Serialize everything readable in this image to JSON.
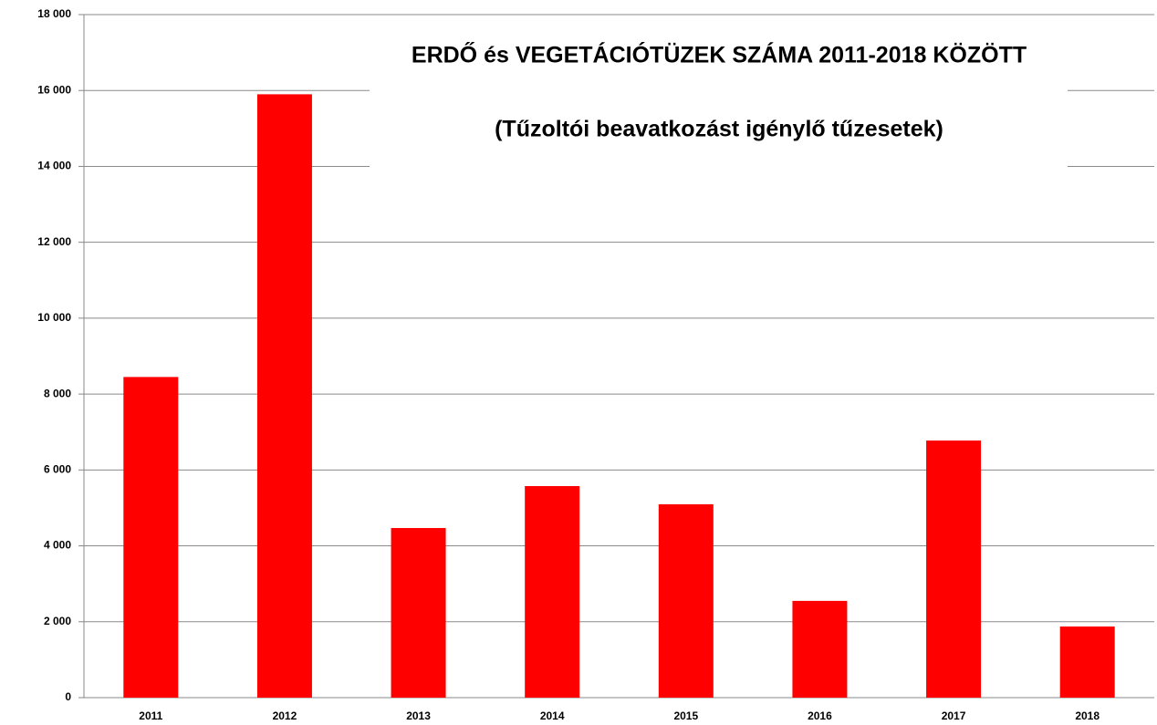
{
  "chart_data": {
    "type": "bar",
    "title": "ERDŐ és VEGETÁCIÓTÜZEK SZÁMA 2011-2018 KÖZÖTT",
    "subtitle": "(Tűzoltói beavatkozást igénylő tűzesetek)",
    "categories": [
      "2011",
      "2012",
      "2013",
      "2014",
      "2015",
      "2016",
      "2017",
      "2018"
    ],
    "values": [
      8450,
      15900,
      4470,
      5575,
      5095,
      2550,
      6775,
      1875
    ],
    "color": "#ff0000",
    "ylim": [
      0,
      18000
    ],
    "yticks": [
      0,
      {
        "value": 2000,
        "label": "2 000"
      },
      {
        "value": 4000,
        "label": "4 000"
      },
      {
        "value": 6000,
        "label": "6 000"
      },
      {
        "value": 8000,
        "label": "8 000"
      },
      {
        "value": 10000,
        "label": "10 000"
      },
      {
        "value": 12000,
        "label": "12 000"
      },
      {
        "value": 14000,
        "label": "14 000"
      },
      {
        "value": 16000,
        "label": "16 000"
      },
      {
        "value": 18000,
        "label": "18 000"
      }
    ],
    "grid": true
  }
}
